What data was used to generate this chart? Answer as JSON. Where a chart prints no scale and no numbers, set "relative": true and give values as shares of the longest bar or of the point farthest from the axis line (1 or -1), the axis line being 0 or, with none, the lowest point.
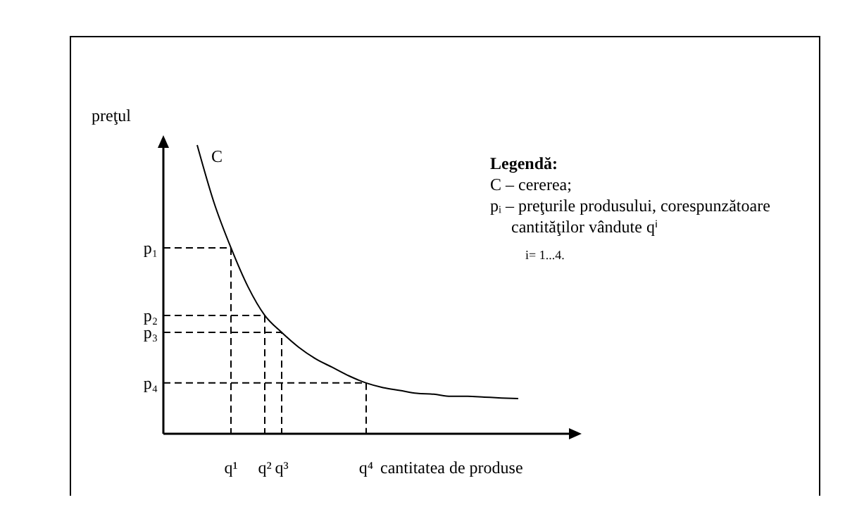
{
  "chart_data": {
    "type": "line",
    "relative": true,
    "ylabel": "preţul",
    "xlabel": "cantitatea de produse",
    "legend": false,
    "marker": "none",
    "line_style": "solid",
    "categories": [
      null,
      null,
      null,
      null,
      "q¹",
      null,
      "q²",
      "q³",
      null,
      null,
      null,
      null,
      "q⁴",
      null,
      null,
      null,
      null,
      null,
      null,
      null,
      null,
      null
    ],
    "series": [
      {
        "name": "C",
        "color": "#000000",
        "values": [
          null,
          null,
          1,
          0.8,
          0.644,
          0.51,
          0.41,
          0.351,
          0.3,
          0.26,
          0.23,
          0.2,
          0.176,
          0.16,
          0.15,
          0.14,
          0.137,
          0.13,
          0.13,
          0.127,
          0.124,
          0.122
        ]
      }
    ],
    "annotations": [
      "p₁",
      "p₂",
      "p₃",
      "p₄",
      "Legendă:",
      "C – cererea;",
      "pᵢ – preţurile produsului, corespunzătoare",
      "cantităţilor vândute qⁱ",
      "i= 1...4."
    ]
  }
}
